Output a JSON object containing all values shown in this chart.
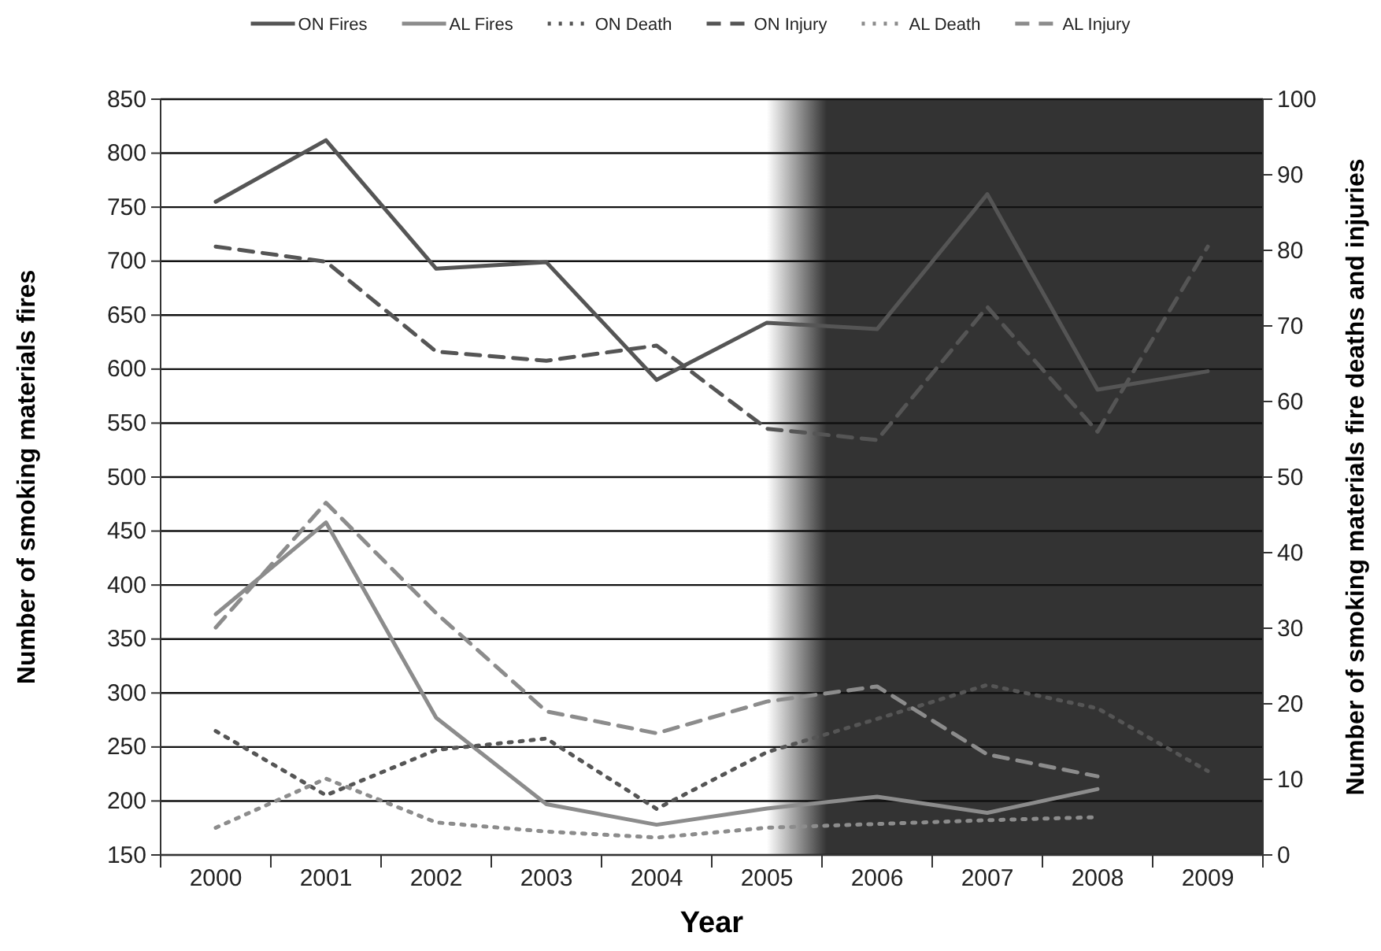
{
  "chart_data": {
    "type": "line",
    "xlabel": "Year",
    "ylabel": "Number of smoking materials fires",
    "y2label": "Number of smoking materials fire deaths and injuries",
    "categories": [
      "2000",
      "2001",
      "2002",
      "2003",
      "2004",
      "2005",
      "2006",
      "2007",
      "2008",
      "2009"
    ],
    "ylim": [
      150,
      850
    ],
    "yticks": [
      150,
      200,
      250,
      300,
      350,
      400,
      450,
      500,
      550,
      600,
      650,
      700,
      750,
      800,
      850
    ],
    "y2lim": [
      0,
      100
    ],
    "y2ticks": [
      0,
      10,
      20,
      30,
      40,
      50,
      60,
      70,
      80,
      90,
      100
    ],
    "grid": "y",
    "legend": "top",
    "marker": "none",
    "bands": [
      {
        "axis": "x",
        "from": "2005",
        "to": "2009",
        "color": "#333333"
      }
    ],
    "series": [
      {
        "name": "ON Fires",
        "color": "#555555",
        "line_style": "solid",
        "values": [
          755,
          812,
          693,
          699,
          590,
          643,
          637,
          762,
          581,
          598
        ]
      },
      {
        "name": "AL Fires",
        "color": "#8c8c8c",
        "line_style": "solid",
        "values": [
          373,
          458,
          277,
          197,
          178,
          193,
          204,
          189,
          211,
          null
        ]
      },
      {
        "name": "ON Death",
        "color": "#555555",
        "line_style": "dotted",
        "axis": "y2",
        "values": [
          16.4,
          7.9,
          13.9,
          15.4,
          6.1,
          13.6,
          18,
          22.5,
          19.4,
          11.1
        ]
      },
      {
        "name": "ON Injury",
        "color": "#555555",
        "line_style": "dashed",
        "axis": "y2",
        "values": [
          80.5,
          78.5,
          66.6,
          65.4,
          67.4,
          56.4,
          54.9,
          72.5,
          56,
          80.5
        ]
      },
      {
        "name": "AL Death",
        "color": "#8c8c8c",
        "line_style": "dotted",
        "axis": "y2",
        "values": [
          3.6,
          10.1,
          4.3,
          3.1,
          2.3,
          3.6,
          4.1,
          4.6,
          5.0,
          null
        ]
      },
      {
        "name": "AL Injury",
        "color": "#8c8c8c",
        "line_style": "dashed",
        "axis": "y2",
        "values": [
          30.1,
          46.6,
          32,
          19,
          16.1,
          20.3,
          22.3,
          13.3,
          10.4,
          null
        ]
      }
    ]
  }
}
